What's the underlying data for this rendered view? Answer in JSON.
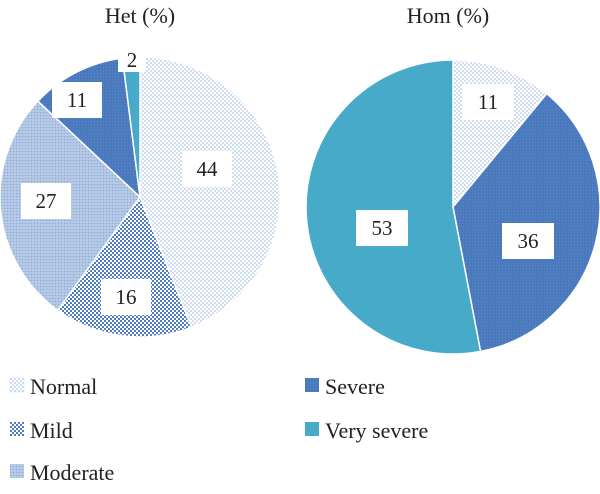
{
  "palette": {
    "normal": "#c9d9ec",
    "mild": "#5a80c0",
    "moderate": "#9fb9dc",
    "severe": "#4a79bd",
    "very_severe": "#46aac8"
  },
  "chart_data": [
    {
      "type": "pie",
      "title": "Het (%)",
      "slices": [
        {
          "category": "Normal",
          "value": 44,
          "label": "44"
        },
        {
          "category": "Mild",
          "value": 16,
          "label": "16"
        },
        {
          "category": "Moderate",
          "value": 27,
          "label": "27"
        },
        {
          "category": "Severe",
          "value": 11,
          "label": "11"
        },
        {
          "category": "Very severe",
          "value": 2,
          "label": "2"
        }
      ]
    },
    {
      "type": "pie",
      "title": "Hom (%)",
      "slices": [
        {
          "category": "Normal",
          "value": 11,
          "label": "11"
        },
        {
          "category": "Severe",
          "value": 36,
          "label": "36"
        },
        {
          "category": "Very severe",
          "value": 53,
          "label": "53"
        }
      ]
    }
  ],
  "legend": {
    "placement": "bottom",
    "items": [
      {
        "key": "normal",
        "label": "Normal"
      },
      {
        "key": "mild",
        "label": "Mild"
      },
      {
        "key": "moderate",
        "label": "Moderate"
      },
      {
        "key": "severe",
        "label": "Severe"
      },
      {
        "key": "very_severe",
        "label": "Very severe"
      }
    ]
  }
}
